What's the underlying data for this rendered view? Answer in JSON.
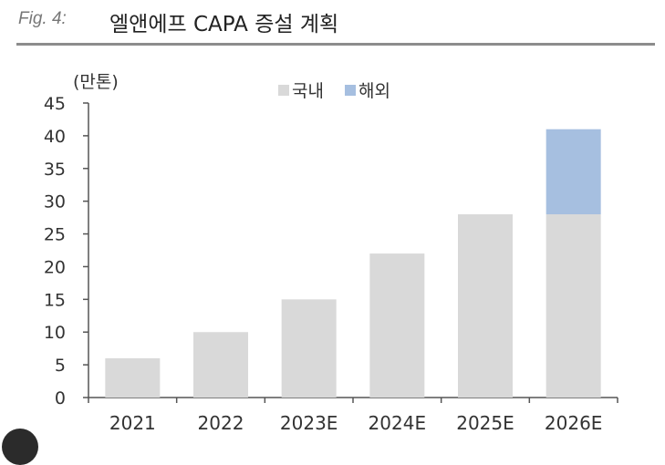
{
  "header": {
    "fig_label": "Fig. 4:",
    "title": "엘앤에프 CAPA 증설 계획"
  },
  "chart_data": {
    "type": "bar",
    "stacked": true,
    "unit_label": "(만톤)",
    "categories": [
      "2021",
      "2022",
      "2023E",
      "2024E",
      "2025E",
      "2026E"
    ],
    "series": [
      {
        "name": "국내",
        "color": "#d9d9d9",
        "values": [
          6,
          10,
          15,
          22,
          28,
          28
        ]
      },
      {
        "name": "해외",
        "color": "#a6bfe0",
        "values": [
          0,
          0,
          0,
          0,
          0,
          13
        ]
      }
    ],
    "ylim": [
      0,
      45
    ],
    "yticks": [
      0,
      5,
      10,
      15,
      20,
      25,
      30,
      35,
      40,
      45
    ],
    "legend_position": "top-center",
    "grid": false
  }
}
